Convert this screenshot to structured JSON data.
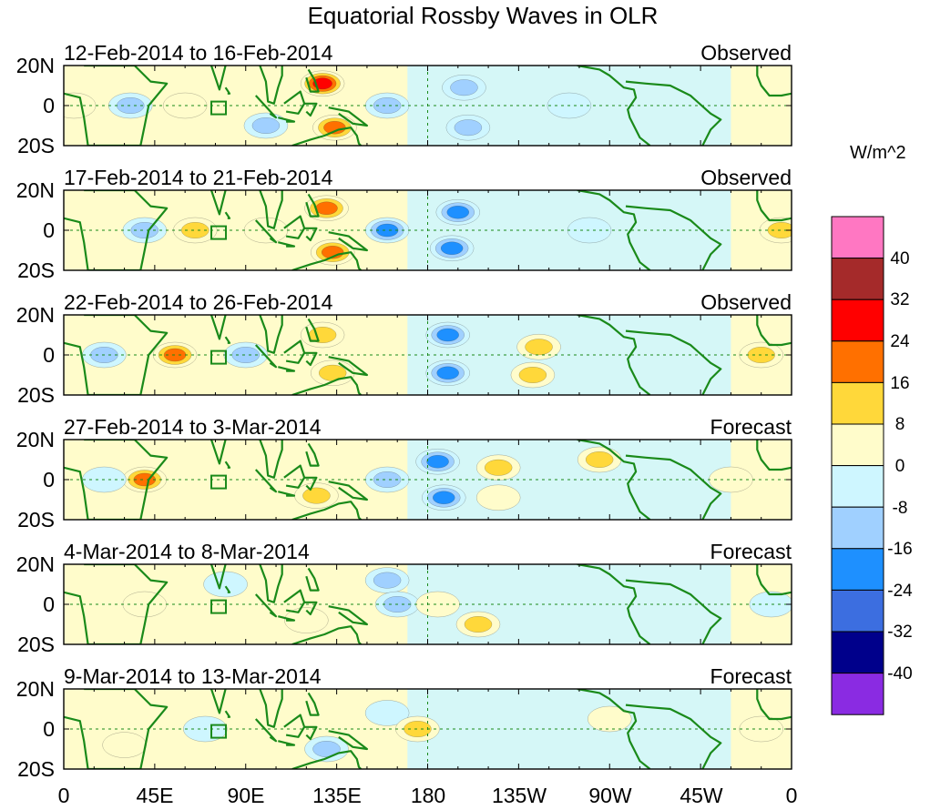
{
  "title": "Equatorial Rossby Waves in OLR",
  "panels": [
    {
      "date": "12-Feb-2014 to 16-Feb-2014",
      "status": "Observed"
    },
    {
      "date": "17-Feb-2014 to 21-Feb-2014",
      "status": "Observed"
    },
    {
      "date": "22-Feb-2014 to 26-Feb-2014",
      "status": "Observed"
    },
    {
      "date": "27-Feb-2014 to 3-Mar-2014",
      "status": "Forecast"
    },
    {
      "date": "4-Mar-2014 to 8-Mar-2014",
      "status": "Forecast"
    },
    {
      "date": "9-Mar-2014 to 13-Mar-2014",
      "status": "Forecast"
    }
  ],
  "lat_labels": [
    "20N",
    "0",
    "20S"
  ],
  "lon_labels": [
    "0",
    "45E",
    "90E",
    "135E",
    "180",
    "135W",
    "90W",
    "45W",
    "0"
  ],
  "colorbar": {
    "unit": "W/m^2",
    "labels": [
      "40",
      "32",
      "24",
      "16",
      "8",
      "0",
      "-8",
      "-16",
      "-24",
      "-32",
      "-40"
    ],
    "colors": [
      "#ff77c2",
      "#a52a2a",
      "#ff0000",
      "#ff7000",
      "#ffd83a",
      "#fffccb",
      "#ceF6ff",
      "#a0d0ff",
      "#1e90ff",
      "#3c6ee0",
      "#00008b",
      "#8a2be2"
    ]
  },
  "chart_data": {
    "type": "contour-map",
    "variable": "OLR anomaly (Equatorial Rossby waves)",
    "units": "W/m^2",
    "x_range": [
      "0",
      "0"
    ],
    "y_range": [
      "20S",
      "20N"
    ],
    "contour_levels": [
      -40,
      -32,
      -24,
      -16,
      -8,
      0,
      8,
      16,
      24,
      32,
      40
    ],
    "panels": [
      {
        "name": "panel-1",
        "features": [
          {
            "lon": 128,
            "lat": 11,
            "value": 28
          },
          {
            "lon": 134,
            "lat": -11,
            "value": 24
          },
          {
            "lon": 60,
            "lat": 0,
            "value": 8
          },
          {
            "lon": 5,
            "lat": 0,
            "value": 8
          },
          {
            "lon": 100,
            "lat": -10,
            "value": -12
          },
          {
            "lon": 198,
            "lat": 9,
            "value": -10
          },
          {
            "lon": 200,
            "lat": -11,
            "value": -10
          },
          {
            "lon": 160,
            "lat": 0,
            "value": -10
          },
          {
            "lon": 33,
            "lat": 0,
            "value": -10
          },
          {
            "lon": 250,
            "lat": 0,
            "value": -6
          }
        ]
      },
      {
        "name": "panel-2",
        "features": [
          {
            "lon": 130,
            "lat": 11,
            "value": 22
          },
          {
            "lon": 133,
            "lat": -11,
            "value": 22
          },
          {
            "lon": 65,
            "lat": 0,
            "value": 10
          },
          {
            "lon": 100,
            "lat": 0,
            "value": 6
          },
          {
            "lon": 160,
            "lat": 0,
            "value": -20
          },
          {
            "lon": 195,
            "lat": 9,
            "value": -20
          },
          {
            "lon": 192,
            "lat": -9,
            "value": -18
          },
          {
            "lon": 40,
            "lat": 0,
            "value": -10
          },
          {
            "lon": 355,
            "lat": 0,
            "value": 10
          },
          {
            "lon": 260,
            "lat": 0,
            "value": -6
          }
        ]
      },
      {
        "name": "panel-3",
        "features": [
          {
            "lon": 55,
            "lat": 0,
            "value": 20
          },
          {
            "lon": 128,
            "lat": 10,
            "value": 14
          },
          {
            "lon": 133,
            "lat": -9,
            "value": 10
          },
          {
            "lon": 190,
            "lat": 10,
            "value": -22
          },
          {
            "lon": 190,
            "lat": -9,
            "value": -20
          },
          {
            "lon": 235,
            "lat": 4,
            "value": 10
          },
          {
            "lon": 232,
            "lat": -10,
            "value": 10
          },
          {
            "lon": 345,
            "lat": 0,
            "value": 10
          },
          {
            "lon": 90,
            "lat": 0,
            "value": -10
          },
          {
            "lon": 20,
            "lat": 0,
            "value": -12
          }
        ]
      },
      {
        "name": "panel-4",
        "features": [
          {
            "lon": 40,
            "lat": 0,
            "value": 18
          },
          {
            "lon": 185,
            "lat": 9,
            "value": -22
          },
          {
            "lon": 188,
            "lat": -9,
            "value": -22
          },
          {
            "lon": 215,
            "lat": 6,
            "value": 10
          },
          {
            "lon": 215,
            "lat": -9,
            "value": 8
          },
          {
            "lon": 265,
            "lat": 10,
            "value": 10
          },
          {
            "lon": 330,
            "lat": 0,
            "value": 8
          },
          {
            "lon": 125,
            "lat": -8,
            "value": 10
          },
          {
            "lon": 160,
            "lat": 0,
            "value": -12
          },
          {
            "lon": 20,
            "lat": 0,
            "value": -8
          }
        ]
      },
      {
        "name": "panel-5",
        "features": [
          {
            "lon": 160,
            "lat": 12,
            "value": -14
          },
          {
            "lon": 165,
            "lat": 0,
            "value": -12
          },
          {
            "lon": 185,
            "lat": 0,
            "value": 8
          },
          {
            "lon": 205,
            "lat": -10,
            "value": 10
          },
          {
            "lon": 40,
            "lat": 0,
            "value": 8
          },
          {
            "lon": 120,
            "lat": -8,
            "value": 8
          },
          {
            "lon": 80,
            "lat": 10,
            "value": -8
          },
          {
            "lon": 350,
            "lat": 0,
            "value": -8
          }
        ]
      },
      {
        "name": "panel-6",
        "features": [
          {
            "lon": 70,
            "lat": 0,
            "value": -8
          },
          {
            "lon": 160,
            "lat": 8,
            "value": -8
          },
          {
            "lon": 175,
            "lat": 0,
            "value": 10
          },
          {
            "lon": 30,
            "lat": -8,
            "value": 8
          },
          {
            "lon": 130,
            "lat": -10,
            "value": -10
          },
          {
            "lon": 270,
            "lat": 5,
            "value": 8
          },
          {
            "lon": 345,
            "lat": 0,
            "value": 6
          }
        ]
      }
    ]
  }
}
